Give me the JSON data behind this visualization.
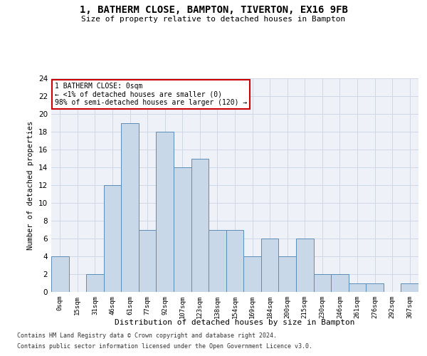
{
  "title1": "1, BATHERM CLOSE, BAMPTON, TIVERTON, EX16 9FB",
  "title2": "Size of property relative to detached houses in Bampton",
  "xlabel": "Distribution of detached houses by size in Bampton",
  "ylabel": "Number of detached properties",
  "bar_values": [
    4,
    0,
    2,
    12,
    19,
    7,
    18,
    14,
    15,
    7,
    7,
    4,
    6,
    4,
    6,
    2,
    2,
    1,
    1,
    0,
    1
  ],
  "bin_labels": [
    "0sqm",
    "15sqm",
    "31sqm",
    "46sqm",
    "61sqm",
    "77sqm",
    "92sqm",
    "107sqm",
    "123sqm",
    "138sqm",
    "154sqm",
    "169sqm",
    "184sqm",
    "200sqm",
    "215sqm",
    "230sqm",
    "246sqm",
    "261sqm",
    "276sqm",
    "292sqm",
    "307sqm"
  ],
  "bar_color": "#c8d8e8",
  "bar_edge_color": "#5b8db8",
  "annotation_box_color": "#ffffff",
  "annotation_border_color": "#cc0000",
  "annotation_text_line1": "1 BATHERM CLOSE: 0sqm",
  "annotation_text_line2": "← <1% of detached houses are smaller (0)",
  "annotation_text_line3": "98% of semi-detached houses are larger (120) →",
  "ylim": [
    0,
    24
  ],
  "yticks": [
    0,
    2,
    4,
    6,
    8,
    10,
    12,
    14,
    16,
    18,
    20,
    22,
    24
  ],
  "grid_color": "#d0d8e8",
  "background_color": "#eef2f8",
  "footer_line1": "Contains HM Land Registry data © Crown copyright and database right 2024.",
  "footer_line2": "Contains public sector information licensed under the Open Government Licence v3.0."
}
